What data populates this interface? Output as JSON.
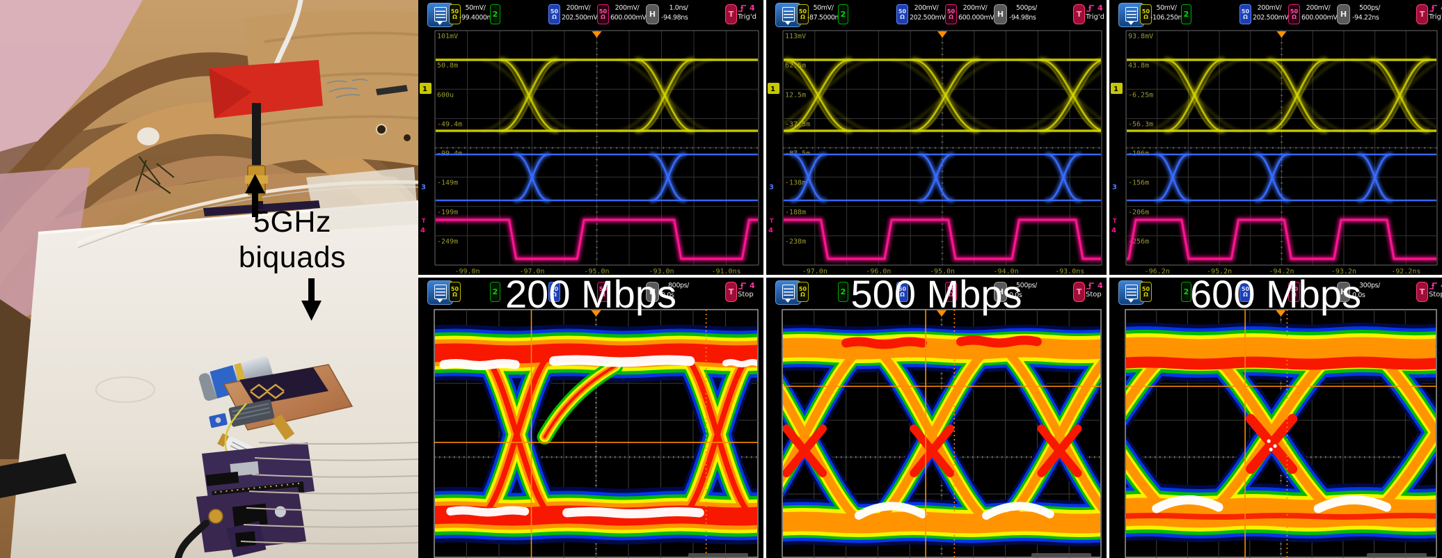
{
  "photo": {
    "annotation_line1": "5GHz",
    "annotation_line2": "biquads"
  },
  "labels": {
    "imp_top": "50",
    "imp_bottom": "Ω",
    "ch2": "2",
    "h_badge": "H",
    "t_badge": "T",
    "trig_source": "4"
  },
  "icons": {
    "menu": "hamburger",
    "caret_down": "▼",
    "trigger_edge": "rising-edge-step"
  },
  "colors": {
    "ch1_yellow": "#d8d800",
    "ch2_green": "#00c800",
    "ch3_blue": "#3a6cff",
    "ch4_magenta": "#ff1493",
    "grid_gray": "#353535",
    "cursor_orange": "#ff8c00",
    "header_blue": "#1a5fb4",
    "trigger_red": "#c01040"
  },
  "scopes_top": [
    {
      "ch1_scale": "50mV/",
      "ch1_offset": "-99.4000mV",
      "ch3_scale": "200mV/",
      "ch3_offset": "202.500mV",
      "ch4_scale": "200mV/",
      "ch4_offset": "600.000mV",
      "h_scale": "1.0ns/",
      "h_delay": "-94.98ns",
      "trig_status": "Trig'd",
      "v_labels": [
        "101mV",
        "50.8m",
        "600u",
        "-49.4m",
        "-99.4m",
        "-149m",
        "-199m",
        "-249m"
      ],
      "t_labels": [
        "-99.0n",
        "-97.0n",
        "-95.0n",
        "-93.0n",
        "-91.0ns"
      ],
      "ch_markers": [
        "1",
        "3",
        "4"
      ]
    },
    {
      "ch1_scale": "50mV/",
      "ch1_offset": "-87.5000mV",
      "ch3_scale": "200mV/",
      "ch3_offset": "202.500mV",
      "ch4_scale": "200mV/",
      "ch4_offset": "600.000mV",
      "h_scale": "500ps/",
      "h_delay": "-94.98ns",
      "trig_status": "Trig'd",
      "v_labels": [
        "113mV",
        "62.5m",
        "12.5m",
        "-37.5m",
        "-87.5m",
        "-138m",
        "-188m",
        "-238m"
      ],
      "t_labels": [
        "-97.0n",
        "-96.0n",
        "-95.0n",
        "-94.0n",
        "-93.0ns"
      ],
      "ch_markers": [
        "1",
        "3",
        "4"
      ]
    },
    {
      "ch1_scale": "50mV/",
      "ch1_offset": "-106.250mV",
      "ch3_scale": "200mV/",
      "ch3_offset": "202.500mV",
      "ch4_scale": "200mV/",
      "ch4_offset": "600.000mV",
      "h_scale": "500ps/",
      "h_delay": "-94.22ns",
      "trig_status": "Trig'd",
      "v_labels": [
        "93.8mV",
        "43.8m",
        "-6.25m",
        "-56.3m",
        "-106m",
        "-156m",
        "-206m",
        "-256m"
      ],
      "t_labels": [
        "-96.2n",
        "-95.2n",
        "-94.2n",
        "-93.2n",
        "-92.2ns"
      ],
      "ch_markers": [
        "1",
        "3",
        "4"
      ]
    }
  ],
  "scopes_bottom": [
    {
      "label": "200 Mbps",
      "h_scale": "800ps/",
      "h_delay": "0.0s",
      "status": "Stop"
    },
    {
      "label": "500 Mbps",
      "h_scale": "500ps/",
      "h_delay": "0.0s",
      "status": "Stop"
    },
    {
      "label": "600 Mbps",
      "h_scale": "300ps/",
      "h_delay": "0.0s",
      "status": "Stop"
    }
  ],
  "chart_data": [
    {
      "type": "line",
      "panel": "top-left",
      "description": "Oscilloscope persistence capture: CH1 eye, CH3 eye, CH4 recovered clock",
      "bitrate": "200 Mbps",
      "timebase": "1.0 ns/div",
      "x_range_ns": [
        -99.98,
        -89.98
      ],
      "traces": [
        {
          "channel": "1",
          "color": "#d8d800",
          "kind": "eye",
          "crossings_frac": [
            0.29,
            0.71
          ],
          "edge_halfwidth_frac": 0.085
        },
        {
          "channel": "3",
          "color": "#3a6cff",
          "kind": "eye",
          "crossings_frac": [
            0.3,
            0.72
          ],
          "edge_halfwidth_frac": 0.05
        },
        {
          "channel": "4",
          "color": "#ff1493",
          "kind": "clock",
          "start_level": "high",
          "edge_times_frac": [
            0.24,
            0.45,
            0.75,
            0.96
          ]
        }
      ]
    },
    {
      "type": "line",
      "panel": "top-middle",
      "description": "Oscilloscope persistence capture: CH1 eye, CH3 eye, CH4 recovered clock",
      "bitrate": "500 Mbps",
      "timebase": "500 ps/div",
      "x_range_ns": [
        -97.48,
        -92.48
      ],
      "traces": [
        {
          "channel": "1",
          "color": "#d8d800",
          "kind": "eye",
          "crossings_frac": [
            0.11,
            0.51,
            0.91
          ],
          "edge_halfwidth_frac": 0.1
        },
        {
          "channel": "3",
          "color": "#3a6cff",
          "kind": "eye",
          "crossings_frac": [
            0.08,
            0.48,
            0.88
          ],
          "edge_halfwidth_frac": 0.05
        },
        {
          "channel": "4",
          "color": "#ff1493",
          "kind": "clock",
          "start_level": "high",
          "edge_times_frac": [
            0.13,
            0.33,
            0.53,
            0.73,
            0.93
          ]
        }
      ]
    },
    {
      "type": "line",
      "panel": "top-right",
      "description": "Oscilloscope persistence capture: CH1 eye, CH3 eye, CH4 recovered clock",
      "bitrate": "600 Mbps",
      "timebase": "500 ps/div",
      "x_range_ns": [
        -96.72,
        -91.72
      ],
      "traces": [
        {
          "channel": "1",
          "color": "#d8d800",
          "kind": "eye",
          "crossings_frac": [
            0.22,
            0.55,
            0.88
          ],
          "edge_halfwidth_frac": 0.09
        },
        {
          "channel": "3",
          "color": "#3a6cff",
          "kind": "eye",
          "crossings_frac": [
            0.15,
            0.47,
            0.8
          ],
          "edge_halfwidth_frac": 0.05
        },
        {
          "channel": "4",
          "color": "#ff1493",
          "kind": "clock",
          "start_level": "low",
          "edge_times_frac": [
            0.02,
            0.19,
            0.35,
            0.52,
            0.68,
            0.85
          ]
        }
      ]
    },
    {
      "type": "heatmap",
      "panel": "bottom-left",
      "description": "Color-graded eye diagram",
      "bitrate": "200 Mbps",
      "timebase": "800 ps/div",
      "crossings_frac": [
        0.255,
        0.875
      ],
      "edge_halfwidth_frac": 0.118,
      "arc_style": false,
      "white_hotspots": "rails",
      "palette": [
        "#000a46",
        "#0535e8",
        "#00bc00",
        "#f6f200",
        "#ff9400",
        "#f81800",
        "#ffffff"
      ],
      "cursors": {
        "v_solid_frac": 0.3,
        "v_dotted_frac": 0.84,
        "h_solid_frac": 0.45
      }
    },
    {
      "type": "heatmap",
      "panel": "bottom-middle",
      "description": "Color-graded eye diagram",
      "bitrate": "500 Mbps",
      "timebase": "500 ps/div",
      "crossings_frac": [
        0.07,
        0.47,
        0.87
      ],
      "edge_halfwidth_frac": 0.19,
      "arc_style": true,
      "white_hotspots": "arc-bottoms",
      "palette": [
        "#000a46",
        "#0535e8",
        "#00bc00",
        "#f6f200",
        "#ff9400",
        "#f81800",
        "#ffffff"
      ],
      "cursors": {
        "v_solid_frac": 0.45,
        "v_dotted_frac": 0.54,
        "h_solid_frac": 0.26
      }
    },
    {
      "type": "heatmap",
      "panel": "bottom-right",
      "description": "Color-graded eye diagram",
      "bitrate": "600 Mbps",
      "timebase": "300 ps/div",
      "crossings_frac": [
        -0.06,
        0.47,
        1.0
      ],
      "edge_halfwidth_frac": 0.22,
      "arc_style": true,
      "white_hotspots": "arc-bottoms",
      "red_top_band": true,
      "palette": [
        "#000a46",
        "#0535e8",
        "#00bc00",
        "#f6f200",
        "#ff9400",
        "#f81800",
        "#ffffff"
      ],
      "cursors": {
        "v_solid_frac": 0.385,
        "v_dotted_frac": 0.52,
        "h_solid_frac": 0.26
      }
    }
  ]
}
